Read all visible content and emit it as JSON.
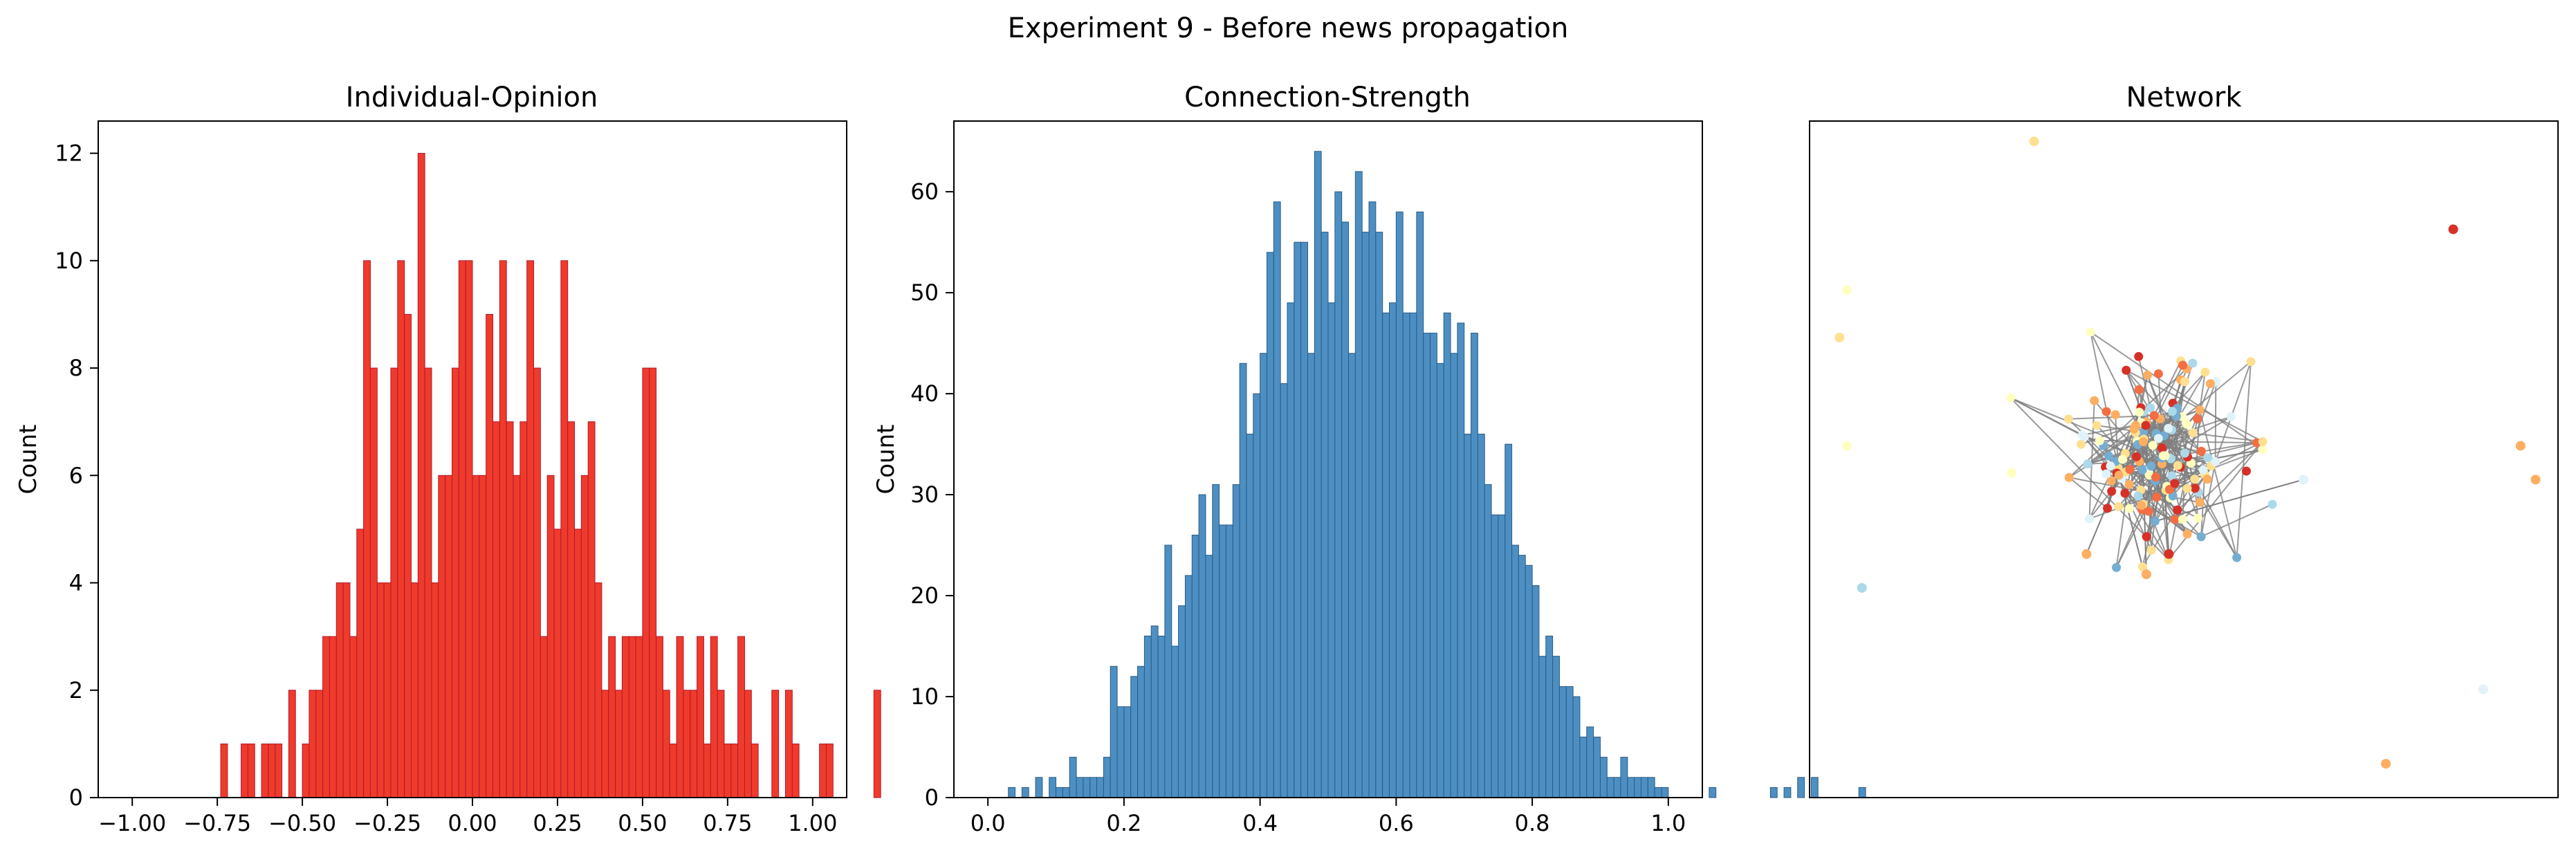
{
  "figure": {
    "title": "Experiment 9 - Before news propagation"
  },
  "chart_data": [
    {
      "type": "histogram",
      "title": "Individual-Opinion",
      "xlabel": "",
      "ylabel": "Count",
      "xlim": [
        -1.1,
        1.1
      ],
      "ylim": [
        0,
        12.6
      ],
      "xticks": [
        -1.0,
        -0.75,
        -0.5,
        -0.25,
        0.0,
        0.25,
        0.5,
        0.75,
        1.0
      ],
      "xtick_labels": [
        "−1.00",
        "−0.75",
        "−0.50",
        "−0.25",
        "0.00",
        "0.25",
        "0.50",
        "0.75",
        "1.00"
      ],
      "yticks": [
        0,
        2,
        4,
        6,
        8,
        10,
        12
      ],
      "ytick_labels": [
        "0",
        "2",
        "4",
        "6",
        "8",
        "10",
        "12"
      ],
      "bin_start": -0.74,
      "bin_width": 0.02,
      "counts": [
        1,
        0,
        0,
        1,
        1,
        0,
        1,
        1,
        1,
        0,
        2,
        0,
        1,
        2,
        2,
        3,
        3,
        4,
        4,
        3,
        5,
        10,
        8,
        4,
        4,
        8,
        10,
        9,
        4,
        12,
        8,
        4,
        6,
        6,
        8,
        10,
        10,
        6,
        6,
        9,
        7,
        10,
        7,
        6,
        7,
        10,
        8,
        3,
        6,
        5,
        10,
        7,
        5,
        6,
        7,
        4,
        2,
        3,
        2,
        3,
        3,
        3,
        8,
        8,
        3,
        2,
        1,
        3,
        2,
        2,
        3,
        1,
        3,
        2,
        1,
        1,
        3,
        2,
        1,
        0,
        0,
        2,
        0,
        2,
        1,
        0,
        0,
        0,
        1,
        1,
        0,
        0,
        0,
        0,
        0,
        0,
        2
      ],
      "bar_color": "#ef3b2c",
      "edge_color": "#b2182b",
      "grid": false
    },
    {
      "type": "histogram",
      "title": "Connection-Strength",
      "xlabel": "",
      "ylabel": "Count",
      "xlim": [
        -0.05,
        1.05
      ],
      "ylim": [
        0,
        67
      ],
      "xticks": [
        0.0,
        0.2,
        0.4,
        0.6,
        0.8,
        1.0
      ],
      "xtick_labels": [
        "0.0",
        "0.2",
        "0.4",
        "0.6",
        "0.8",
        "1.0"
      ],
      "yticks": [
        0,
        10,
        20,
        30,
        40,
        50,
        60
      ],
      "ytick_labels": [
        "0",
        "10",
        "20",
        "30",
        "40",
        "50",
        "60"
      ],
      "bin_start": 0.03,
      "bin_width": 0.01,
      "counts": [
        1,
        0,
        1,
        0,
        2,
        0,
        2,
        1,
        1,
        4,
        2,
        2,
        2,
        2,
        4,
        13,
        9,
        9,
        12,
        13,
        16,
        17,
        16,
        25,
        15,
        19,
        22,
        26,
        30,
        24,
        31,
        27,
        27,
        31,
        43,
        36,
        40,
        44,
        54,
        59,
        41,
        49,
        55,
        55,
        44,
        64,
        56,
        49,
        60,
        57,
        44,
        62,
        56,
        59,
        56,
        48,
        49,
        58,
        48,
        48,
        58,
        46,
        46,
        43,
        48,
        44,
        47,
        36,
        46,
        36,
        31,
        28,
        28,
        35,
        25,
        24,
        23,
        21,
        14,
        16,
        14,
        11,
        11,
        10,
        6,
        7,
        6,
        4,
        2,
        2,
        4,
        2,
        2,
        2,
        2,
        1,
        1,
        0,
        0,
        0,
        0,
        0,
        0,
        1,
        0,
        0,
        0,
        0,
        0,
        0,
        0,
        0,
        1,
        0,
        1,
        0,
        2,
        0,
        2,
        0,
        0,
        0,
        0,
        0,
        0,
        1
      ],
      "bar_color": "#4d8fc2",
      "edge_color": "#2b5c84",
      "grid": false
    },
    {
      "type": "network",
      "title": "Network",
      "axes_visible": false,
      "edge_color": "#808080",
      "node_palette": [
        "#d73027",
        "#f46d43",
        "#fdae61",
        "#fee090",
        "#ffffbf",
        "#e0f3f8",
        "#abd9e9",
        "#74add1"
      ],
      "outlier_nodes": [
        {
          "x": 0.3,
          "y": 0.97,
          "color": "#fee090"
        },
        {
          "x": 0.86,
          "y": 0.84,
          "color": "#d73027"
        },
        {
          "x": 0.05,
          "y": 0.75,
          "color": "#ffffbf"
        },
        {
          "x": 0.04,
          "y": 0.68,
          "color": "#fee090"
        },
        {
          "x": 0.05,
          "y": 0.52,
          "color": "#ffffbf"
        },
        {
          "x": 0.95,
          "y": 0.52,
          "color": "#fdae61"
        },
        {
          "x": 0.97,
          "y": 0.47,
          "color": "#fdae61"
        },
        {
          "x": 0.07,
          "y": 0.31,
          "color": "#abd9e9"
        },
        {
          "x": 0.9,
          "y": 0.16,
          "color": "#e0f3f8"
        },
        {
          "x": 0.77,
          "y": 0.05,
          "color": "#fdae61"
        },
        {
          "x": 0.37,
          "y": 0.36,
          "color": "#fdae61"
        },
        {
          "x": 0.45,
          "y": 0.33,
          "color": "#fdae61"
        },
        {
          "x": 0.48,
          "y": 0.36,
          "color": "#d73027"
        },
        {
          "x": 0.27,
          "y": 0.48,
          "color": "#ffffbf"
        },
        {
          "x": 0.66,
          "y": 0.47,
          "color": "#e0f3f8"
        }
      ],
      "cluster": {
        "cx": 0.46,
        "cy": 0.51,
        "sx": 0.055,
        "sy": 0.07,
        "node_count": 150,
        "edge_count": 220
      }
    }
  ]
}
